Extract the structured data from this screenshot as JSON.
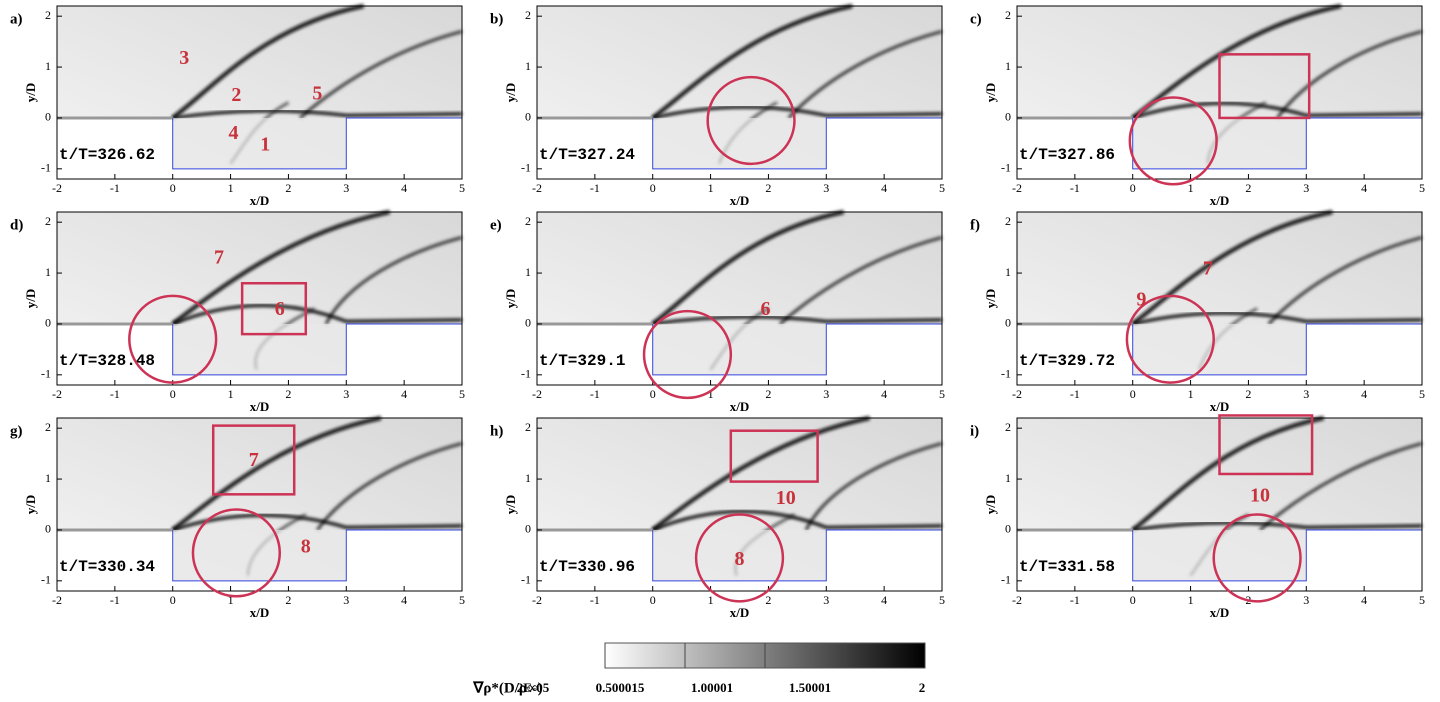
{
  "chart_data": [
    {
      "type": "contour",
      "panel_label": "a)",
      "time_label": "t/T=326.62",
      "x_label": "x/D",
      "y_label": "y/D",
      "xlim": [
        -2,
        5
      ],
      "ylim": [
        -1.2,
        2.2
      ],
      "xticks": [
        -2,
        -1,
        0,
        1,
        2,
        3,
        4,
        5
      ],
      "yticks": [
        -1,
        0,
        1,
        2
      ],
      "annotations": [
        "3",
        "2",
        "5",
        "4",
        "1"
      ]
    },
    {
      "type": "contour",
      "panel_label": "b)",
      "time_label": "t/T=327.24",
      "x_label": "x/D",
      "y_label": "y/D",
      "xlim": [
        -2,
        5
      ],
      "ylim": [
        -1.2,
        2.2
      ],
      "xticks": [
        -2,
        -1,
        0,
        1,
        2,
        3,
        4,
        5
      ],
      "yticks": [
        -1,
        0,
        1,
        2
      ],
      "annotations": []
    },
    {
      "type": "contour",
      "panel_label": "c)",
      "time_label": "t/T=327.86",
      "x_label": "x/D",
      "y_label": "y/D",
      "xlim": [
        -2,
        5
      ],
      "ylim": [
        -1.2,
        2.2
      ],
      "xticks": [
        -2,
        -1,
        0,
        1,
        2,
        3,
        4,
        5
      ],
      "yticks": [
        -1,
        0,
        1,
        2
      ],
      "annotations": []
    },
    {
      "type": "contour",
      "panel_label": "d)",
      "time_label": "t/T=328.48",
      "x_label": "x/D",
      "y_label": "y/D",
      "xlim": [
        -2,
        5
      ],
      "ylim": [
        -1.2,
        2.2
      ],
      "xticks": [
        -2,
        -1,
        0,
        1,
        2,
        3,
        4,
        5
      ],
      "yticks": [
        -1,
        0,
        1,
        2
      ],
      "annotations": [
        "7",
        "6"
      ]
    },
    {
      "type": "contour",
      "panel_label": "e)",
      "time_label": "t/T=329.1",
      "x_label": "x/D",
      "y_label": "y/D",
      "xlim": [
        -2,
        5
      ],
      "ylim": [
        -1.2,
        2.2
      ],
      "xticks": [
        -2,
        -1,
        0,
        1,
        2,
        3,
        4,
        5
      ],
      "yticks": [
        -1,
        0,
        1,
        2
      ],
      "annotations": [
        "6"
      ]
    },
    {
      "type": "contour",
      "panel_label": "f)",
      "time_label": "t/T=329.72",
      "x_label": "x/D",
      "y_label": "y/D",
      "xlim": [
        -2,
        5
      ],
      "ylim": [
        -1.2,
        2.2
      ],
      "xticks": [
        -2,
        -1,
        0,
        1,
        2,
        3,
        4,
        5
      ],
      "yticks": [
        -1,
        0,
        1,
        2
      ],
      "annotations": [
        "7",
        "9"
      ]
    },
    {
      "type": "contour",
      "panel_label": "g)",
      "time_label": "t/T=330.34",
      "x_label": "x/D",
      "y_label": "y/D",
      "xlim": [
        -2,
        5
      ],
      "ylim": [
        -1.2,
        2.2
      ],
      "xticks": [
        -2,
        -1,
        0,
        1,
        2,
        3,
        4,
        5
      ],
      "yticks": [
        -1,
        0,
        1,
        2
      ],
      "annotations": [
        "7",
        "8"
      ]
    },
    {
      "type": "contour",
      "panel_label": "h)",
      "time_label": "t/T=330.96",
      "x_label": "x/D",
      "y_label": "y/D",
      "xlim": [
        -2,
        5
      ],
      "ylim": [
        -1.2,
        2.2
      ],
      "xticks": [
        -2,
        -1,
        0,
        1,
        2,
        3,
        4,
        5
      ],
      "yticks": [
        -1,
        0,
        1,
        2
      ],
      "annotations": [
        "10",
        "8"
      ]
    },
    {
      "type": "contour",
      "panel_label": "i)",
      "time_label": "t/T=331.58",
      "x_label": "x/D",
      "y_label": "y/D",
      "xlim": [
        -2,
        5
      ],
      "ylim": [
        -1.2,
        2.2
      ],
      "xticks": [
        -2,
        -1,
        0,
        1,
        2,
        3,
        4,
        5
      ],
      "yticks": [
        -1,
        0,
        1,
        2
      ],
      "annotations": [
        "10"
      ]
    }
  ],
  "colorbar": {
    "label": "∇ρ*(D/ρ∞)",
    "lim": [
      0,
      2
    ],
    "ticks": [
      {
        "value": 2e-05,
        "label": "2E-05"
      },
      0.500015,
      1.00001,
      1.50001,
      2
    ]
  }
}
